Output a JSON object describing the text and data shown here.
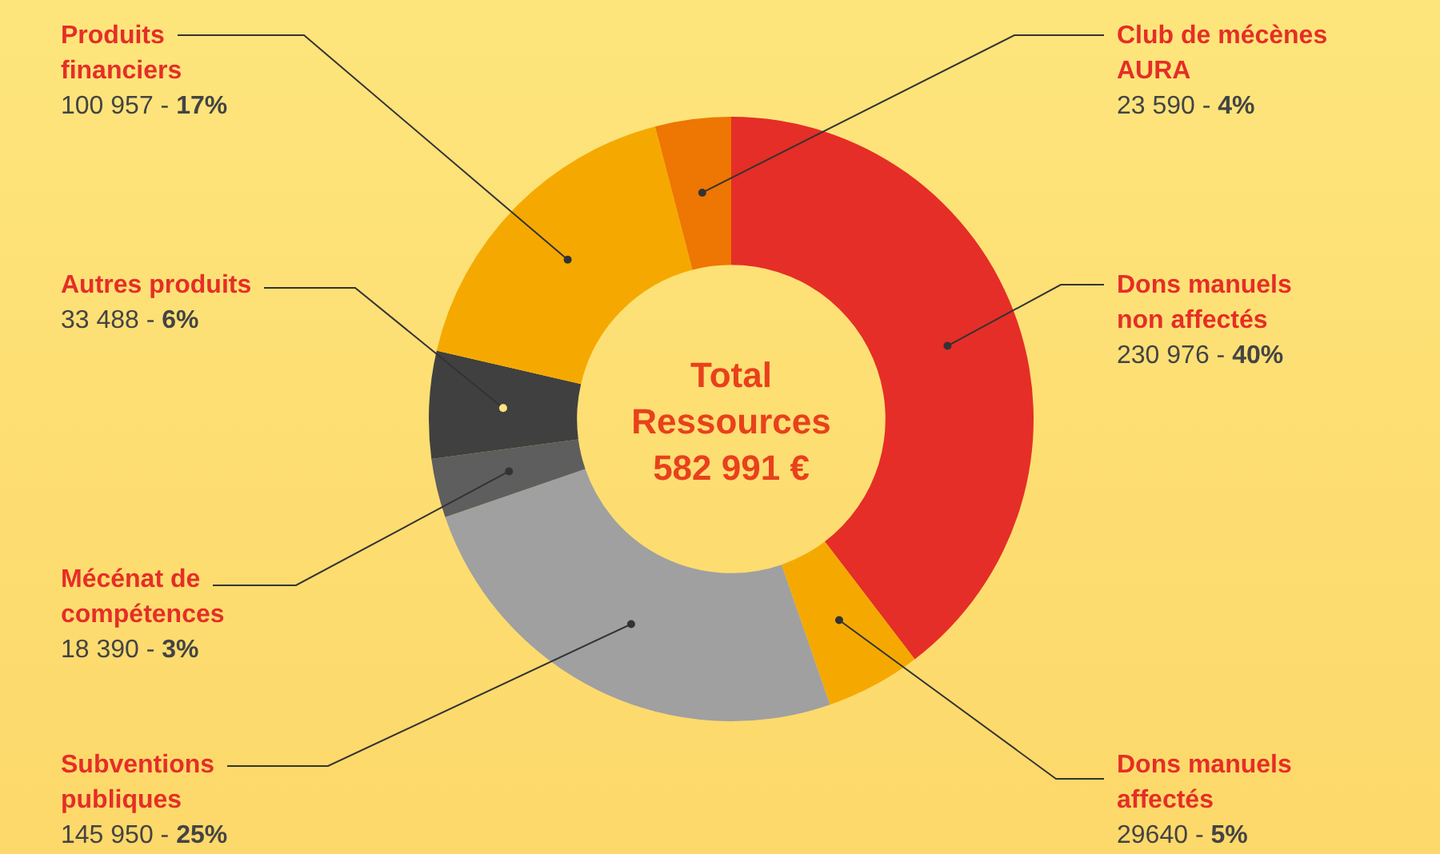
{
  "chart_data": {
    "type": "donut",
    "title": "Total Ressources",
    "annotations": [
      "582 991 €"
    ],
    "categories": [
      "Dons manuels non affectés",
      "Dons manuels affectés",
      "Subventions publiques",
      "Mécénat de compétences",
      "Autres produits",
      "Produits financiers",
      "Club de mécènes AURA"
    ],
    "values": [
      230976,
      29640,
      145950,
      18390,
      33488,
      100957,
      23590
    ],
    "value_labels": [
      "230 976 - 40%",
      "29640 - 5%",
      "145 950 - 25%",
      "18 390 - 3%",
      "33 488 - 6%",
      "100 957 - 17%",
      "23 590 - 4%"
    ],
    "colors": [
      "#e52e27",
      "#f5a900",
      "#a0a0a0",
      "#5e5e5e",
      "#404040",
      "#f5a900",
      "#ee7602"
    ],
    "legend": false
  }
}
